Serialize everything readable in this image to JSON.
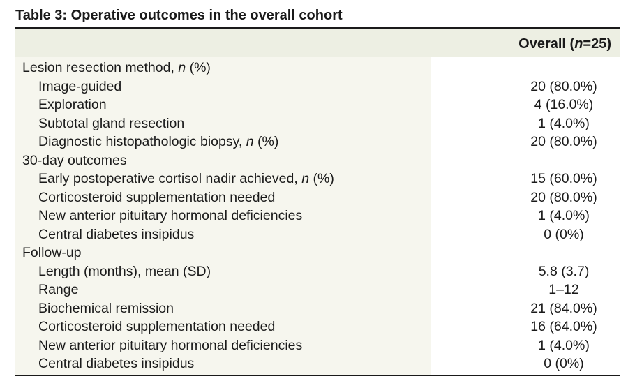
{
  "table": {
    "title": "Table 3: Operative outcomes in the overall cohort",
    "column_header": {
      "prefix": "Overall (",
      "n_symbol": "n",
      "suffix": "=25)"
    },
    "rows": [
      {
        "label": "Lesion resection method, ",
        "italic": "n",
        "tail": " (%)",
        "value": "",
        "indent": false
      },
      {
        "label": "Image-guided",
        "italic": "",
        "tail": "",
        "value": "20 (80.0%)",
        "indent": true
      },
      {
        "label": "Exploration",
        "italic": "",
        "tail": "",
        "value": "4 (16.0%)",
        "indent": true
      },
      {
        "label": "Subtotal gland resection",
        "italic": "",
        "tail": "",
        "value": "1 (4.0%)",
        "indent": true
      },
      {
        "label": "Diagnostic histopathologic biopsy, ",
        "italic": "n",
        "tail": " (%)",
        "value": "20 (80.0%)",
        "indent": true
      },
      {
        "label": "30-day outcomes",
        "italic": "",
        "tail": "",
        "value": "",
        "indent": false
      },
      {
        "label": "Early postoperative cortisol nadir achieved, ",
        "italic": "n",
        "tail": " (%)",
        "value": "15 (60.0%)",
        "indent": true
      },
      {
        "label": "Corticosteroid supplementation needed",
        "italic": "",
        "tail": "",
        "value": "20 (80.0%)",
        "indent": true
      },
      {
        "label": "New anterior pituitary hormonal deficiencies",
        "italic": "",
        "tail": "",
        "value": "1 (4.0%)",
        "indent": true
      },
      {
        "label": "Central diabetes insipidus",
        "italic": "",
        "tail": "",
        "value": "0 (0%)",
        "indent": true
      },
      {
        "label": "Follow-up",
        "italic": "",
        "tail": "",
        "value": "",
        "indent": false
      },
      {
        "label": "Length (months), mean (SD)",
        "italic": "",
        "tail": "",
        "value": "5.8 (3.7)",
        "indent": true
      },
      {
        "label": "Range",
        "italic": "",
        "tail": "",
        "value": "1–12",
        "indent": true
      },
      {
        "label": "Biochemical remission",
        "italic": "",
        "tail": "",
        "value": "21 (84.0%)",
        "indent": true
      },
      {
        "label": "Corticosteroid supplementation needed",
        "italic": "",
        "tail": "",
        "value": "16 (64.0%)",
        "indent": true
      },
      {
        "label": "New anterior pituitary hormonal deficiencies",
        "italic": "",
        "tail": "",
        "value": "1 (4.0%)",
        "indent": true
      },
      {
        "label": "Central diabetes insipidus",
        "italic": "",
        "tail": "",
        "value": "0 (0%)",
        "indent": true
      }
    ]
  }
}
